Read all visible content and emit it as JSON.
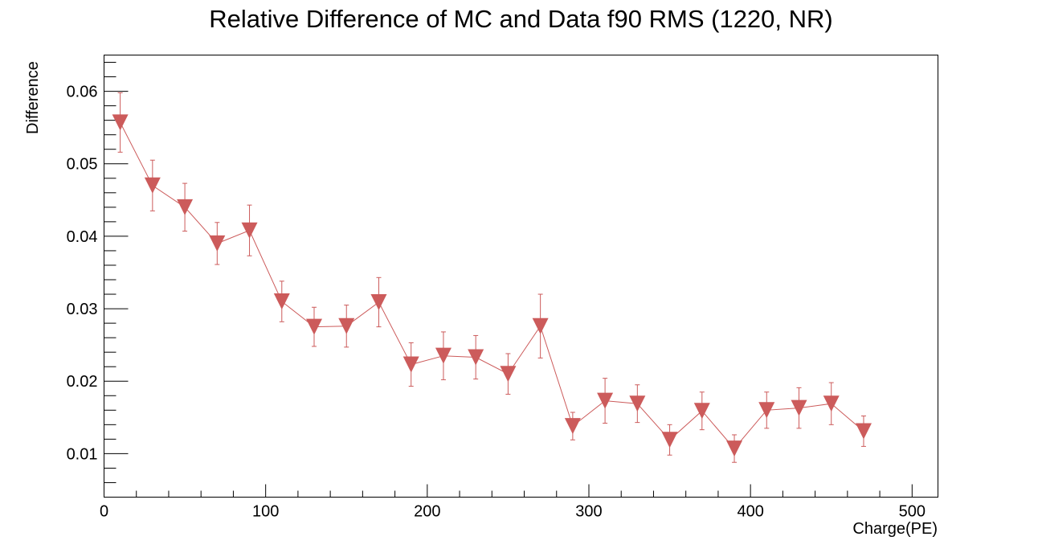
{
  "chart_data": {
    "type": "scatter",
    "title": "Relative Difference of MC and Data f90 RMS (1220, NR)",
    "xlabel": "Charge(PE)",
    "ylabel": "Difference",
    "xlim": [
      0,
      516
    ],
    "ylim": [
      0.004,
      0.065
    ],
    "x_ticks": [
      0,
      100,
      200,
      300,
      400,
      500
    ],
    "x_tick_labels": [
      "0",
      "100",
      "200",
      "300",
      "400",
      "500"
    ],
    "y_ticks": [
      0.01,
      0.02,
      0.03,
      0.04,
      0.05,
      0.06
    ],
    "y_tick_labels": [
      "0.01",
      "0.02",
      "0.03",
      "0.04",
      "0.05",
      "0.06"
    ],
    "grid": false,
    "marker": "inverted-triangle",
    "color": "#cc5b5b",
    "series": [
      {
        "x": [
          10,
          30,
          50,
          70,
          90,
          110,
          130,
          150,
          170,
          190,
          210,
          230,
          250,
          270,
          290,
          310,
          330,
          350,
          370,
          390,
          410,
          430,
          450,
          470
        ],
        "y": [
          0.0557,
          0.047,
          0.044,
          0.039,
          0.0408,
          0.031,
          0.0275,
          0.0276,
          0.0309,
          0.0223,
          0.0235,
          0.0233,
          0.021,
          0.0276,
          0.0138,
          0.0173,
          0.0169,
          0.0119,
          0.0159,
          0.0107,
          0.016,
          0.0163,
          0.0169,
          0.0131
        ],
        "y_err": [
          0.0041,
          0.0035,
          0.0033,
          0.0029,
          0.0035,
          0.0028,
          0.0027,
          0.0029,
          0.0034,
          0.003,
          0.0033,
          0.003,
          0.0028,
          0.0044,
          0.0019,
          0.0031,
          0.0026,
          0.0021,
          0.0026,
          0.0019,
          0.0025,
          0.0028,
          0.0029,
          0.0021
        ]
      }
    ]
  }
}
